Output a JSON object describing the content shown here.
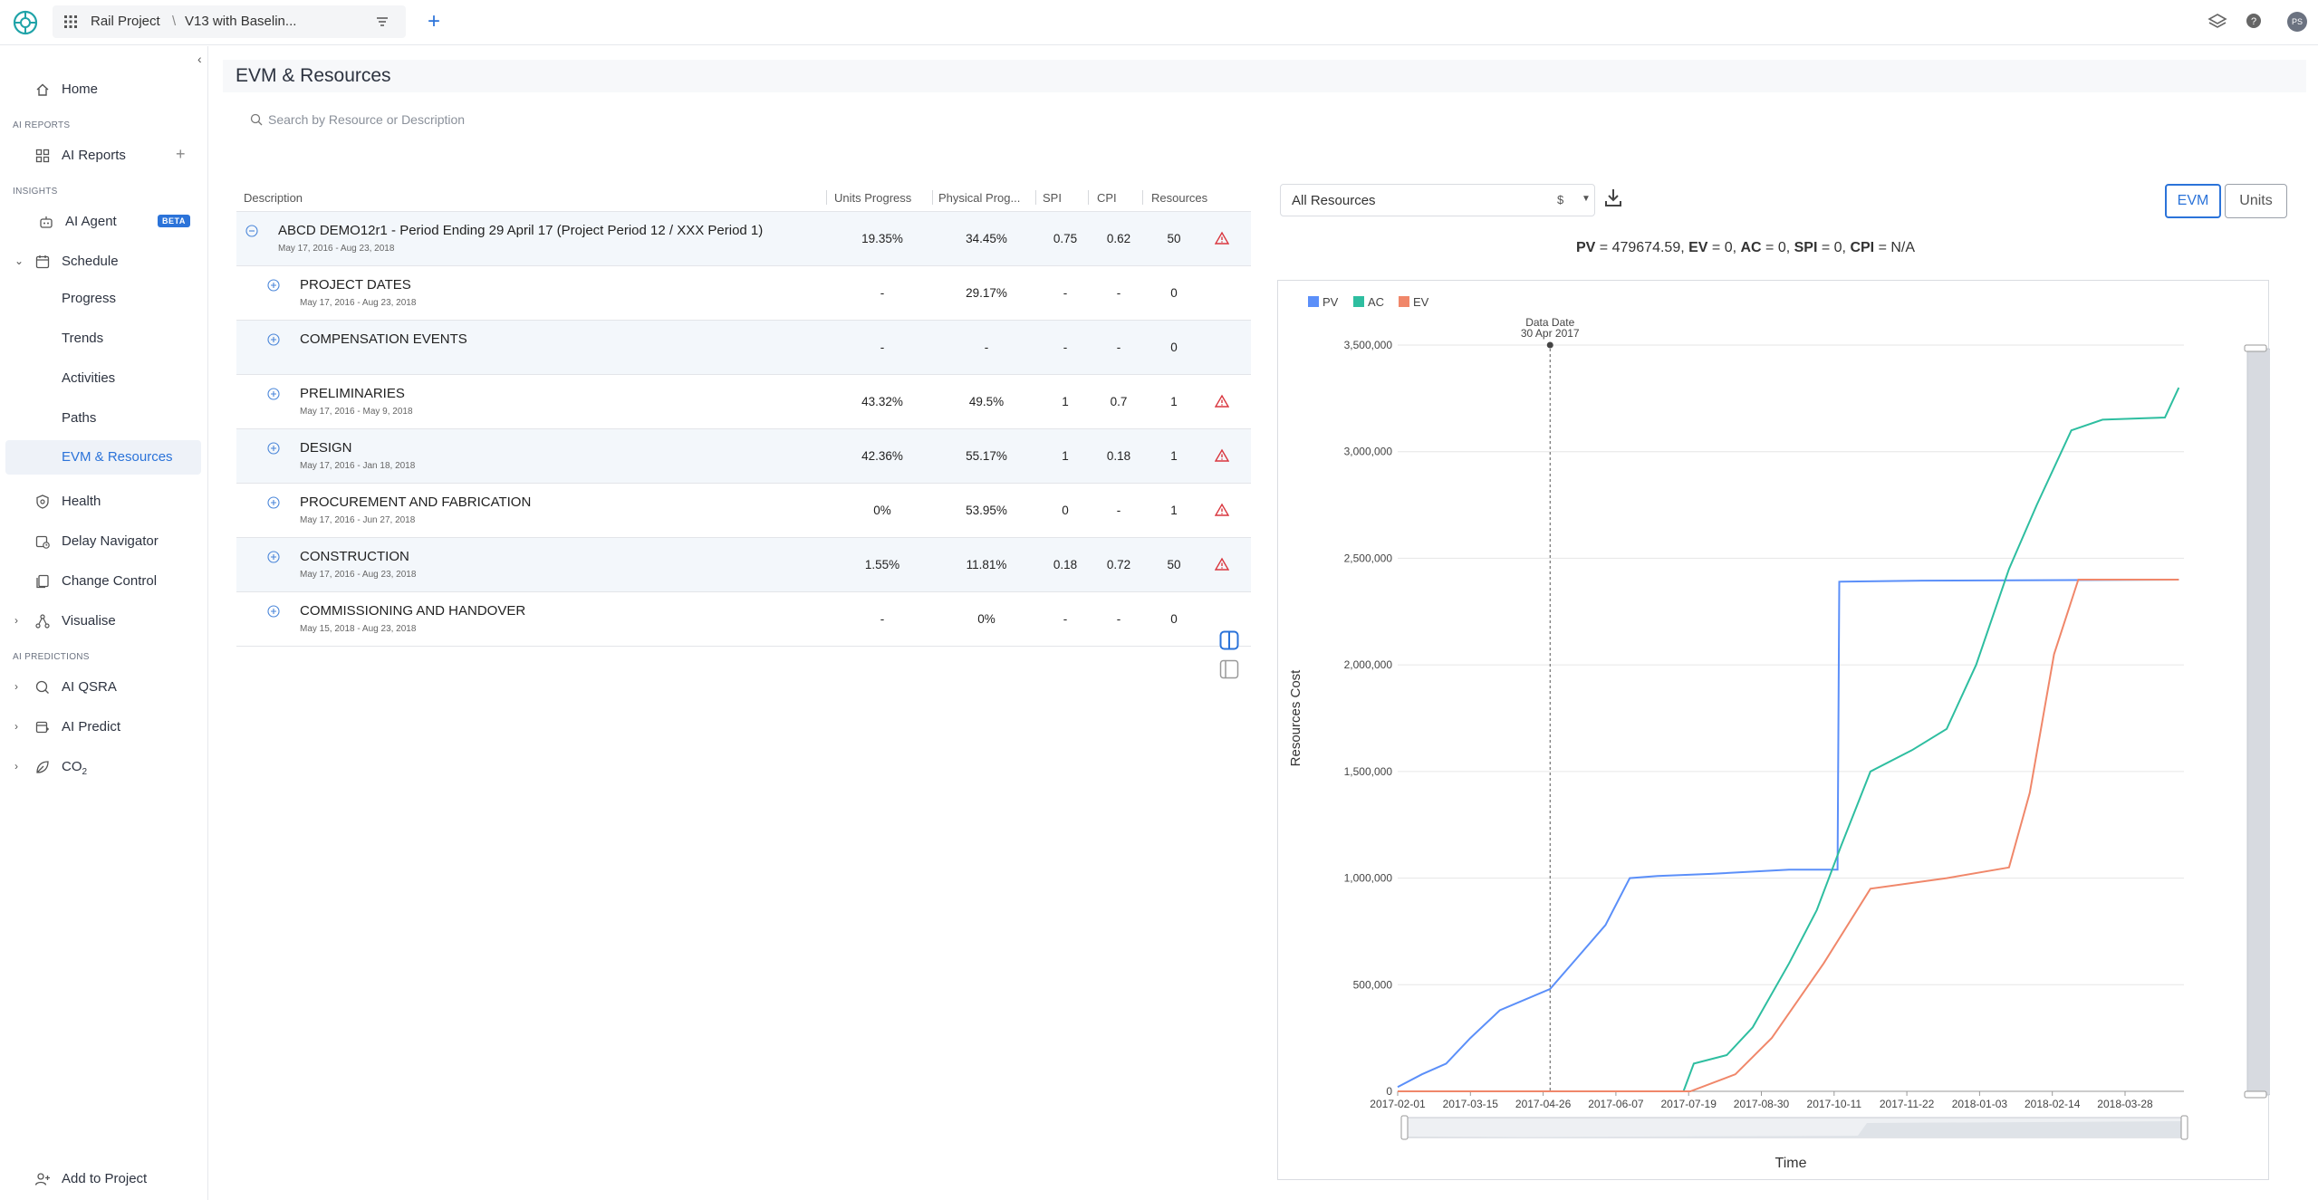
{
  "topbar": {
    "project": "Rail Project",
    "separator": "\\",
    "version": "V13 with Baselin...",
    "avatar_initials": "PS"
  },
  "sidebar": {
    "home": "Home",
    "section_ai_reports": "AI REPORTS",
    "ai_reports": "AI Reports",
    "section_insights": "INSIGHTS",
    "ai_agent": "AI Agent",
    "beta": "BETA",
    "schedule": "Schedule",
    "schedule_sub": [
      "Progress",
      "Trends",
      "Activities",
      "Paths",
      "EVM & Resources"
    ],
    "health": "Health",
    "delay_navigator": "Delay Navigator",
    "change_control": "Change Control",
    "visualise": "Visualise",
    "section_ai_predictions": "AI PREDICTIONS",
    "ai_qsra": "AI QSRA",
    "ai_predict": "AI Predict",
    "co2": "CO",
    "co2_sub": "2",
    "add_to_project": "Add to Project"
  },
  "page": {
    "title": "EVM & Resources",
    "search_placeholder": "Search by Resource or Description"
  },
  "table": {
    "headers": {
      "description": "Description",
      "units_progress": "Units Progress",
      "physical_progress": "Physical Prog...",
      "spi": "SPI",
      "cpi": "CPI",
      "resources": "Resources"
    },
    "rows": [
      {
        "name": "ABCD DEMO12r1 - Period Ending 29 April 17 (Project Period 12 / XXX Period 1)",
        "dates": "May 17, 2016 - Aug 23, 2018",
        "units": "19.35%",
        "phys": "34.45%",
        "spi": "0.75",
        "cpi": "0.62",
        "res": "50",
        "warn": true
      },
      {
        "name": "PROJECT DATES",
        "dates": "May 17, 2016 - Aug 23, 2018",
        "units": "-",
        "phys": "29.17%",
        "spi": "-",
        "cpi": "-",
        "res": "0",
        "warn": false
      },
      {
        "name": "COMPENSATION EVENTS",
        "dates": "",
        "units": "-",
        "phys": "-",
        "spi": "-",
        "cpi": "-",
        "res": "0",
        "warn": false
      },
      {
        "name": "PRELIMINARIES",
        "dates": "May 17, 2016 - May 9, 2018",
        "units": "43.32%",
        "phys": "49.5%",
        "spi": "1",
        "cpi": "0.7",
        "res": "1",
        "warn": true
      },
      {
        "name": "DESIGN",
        "dates": "May 17, 2016 - Jan 18, 2018",
        "units": "42.36%",
        "phys": "55.17%",
        "spi": "1",
        "cpi": "0.18",
        "res": "1",
        "warn": true
      },
      {
        "name": "PROCUREMENT AND FABRICATION",
        "dates": "May 17, 2016 - Jun 27, 2018",
        "units": "0%",
        "phys": "53.95%",
        "spi": "0",
        "cpi": "-",
        "res": "1",
        "warn": true
      },
      {
        "name": "CONSTRUCTION",
        "dates": "May 17, 2016 - Aug 23, 2018",
        "units": "1.55%",
        "phys": "11.81%",
        "spi": "0.18",
        "cpi": "0.72",
        "res": "50",
        "warn": true
      },
      {
        "name": "COMMISSIONING AND HANDOVER",
        "dates": "May 15, 2018 - Aug 23, 2018",
        "units": "-",
        "phys": "0%",
        "spi": "-",
        "cpi": "-",
        "res": "0",
        "warn": false
      }
    ]
  },
  "controls": {
    "resource_filter": "All Resources",
    "currency": "$",
    "evm": "EVM",
    "units": "Units"
  },
  "metrics": {
    "pv_label": "PV",
    "pv_value": " = 479674.59, ",
    "ev_label": "EV",
    "ev_value": " = 0, ",
    "ac_label": "AC",
    "ac_value": " = 0, ",
    "spi_label": "SPI",
    "spi_value": " = 0, ",
    "cpi_label": "CPI",
    "cpi_value": " = N/A"
  },
  "chart_data": {
    "type": "line",
    "xlabel": "Time",
    "ylabel": "Resources Cost",
    "ylim": [
      0,
      3500000
    ],
    "yticks": [
      0,
      500000,
      1000000,
      1500000,
      2000000,
      2500000,
      3000000,
      3500000
    ],
    "ytick_labels": [
      "0",
      "500,000",
      "1,000,000",
      "1,500,000",
      "2,000,000",
      "2,500,000",
      "3,000,000",
      "3,500,000"
    ],
    "xlim": [
      "2017-02-01",
      "2018-05-01"
    ],
    "xtick_labels": [
      "2017-02-01",
      "2017-03-15",
      "2017-04-26",
      "2017-06-07",
      "2017-07-19",
      "2017-08-30",
      "2017-10-11",
      "2017-11-22",
      "2018-01-03",
      "2018-02-14",
      "2018-03-28"
    ],
    "data_date_label": "Data Date",
    "data_date_value": "30 Apr 2017",
    "data_date": "2017-04-30",
    "legend_position": "top-left",
    "grid": true,
    "series": [
      {
        "name": "PV",
        "color": "#5b8ff9",
        "points": [
          [
            "2017-02-01",
            20000
          ],
          [
            "2017-02-15",
            80000
          ],
          [
            "2017-03-01",
            130000
          ],
          [
            "2017-03-15",
            250000
          ],
          [
            "2017-04-01",
            380000
          ],
          [
            "2017-04-30",
            480000
          ],
          [
            "2017-05-15",
            620000
          ],
          [
            "2017-06-01",
            780000
          ],
          [
            "2017-06-15",
            1000000
          ],
          [
            "2017-07-01",
            1010000
          ],
          [
            "2017-08-01",
            1020000
          ],
          [
            "2017-09-15",
            1040000
          ],
          [
            "2017-10-13",
            1040000
          ],
          [
            "2017-10-14",
            2390000
          ],
          [
            "2017-12-01",
            2395000
          ],
          [
            "2018-04-28",
            2400000
          ]
        ]
      },
      {
        "name": "AC",
        "color": "#2ebea0",
        "points": [
          [
            "2017-02-01",
            0
          ],
          [
            "2017-07-16",
            0
          ],
          [
            "2017-07-22",
            130000
          ],
          [
            "2017-08-10",
            170000
          ],
          [
            "2017-08-25",
            300000
          ],
          [
            "2017-09-15",
            600000
          ],
          [
            "2017-10-01",
            850000
          ],
          [
            "2017-10-15",
            1150000
          ],
          [
            "2017-11-01",
            1500000
          ],
          [
            "2017-11-25",
            1600000
          ],
          [
            "2017-12-15",
            1700000
          ],
          [
            "2018-01-01",
            2000000
          ],
          [
            "2018-01-20",
            2450000
          ],
          [
            "2018-02-05",
            2750000
          ],
          [
            "2018-02-25",
            3100000
          ],
          [
            "2018-03-15",
            3150000
          ],
          [
            "2018-04-20",
            3160000
          ],
          [
            "2018-04-28",
            3300000
          ]
        ]
      },
      {
        "name": "EV",
        "color": "#f0876a",
        "points": [
          [
            "2017-02-01",
            0
          ],
          [
            "2017-07-20",
            0
          ],
          [
            "2017-08-15",
            80000
          ],
          [
            "2017-09-05",
            250000
          ],
          [
            "2017-10-05",
            600000
          ],
          [
            "2017-11-01",
            950000
          ],
          [
            "2017-12-15",
            1000000
          ],
          [
            "2018-01-20",
            1050000
          ],
          [
            "2018-02-01",
            1400000
          ],
          [
            "2018-02-15",
            2050000
          ],
          [
            "2018-03-01",
            2400000
          ],
          [
            "2018-04-28",
            2400000
          ]
        ]
      }
    ]
  }
}
